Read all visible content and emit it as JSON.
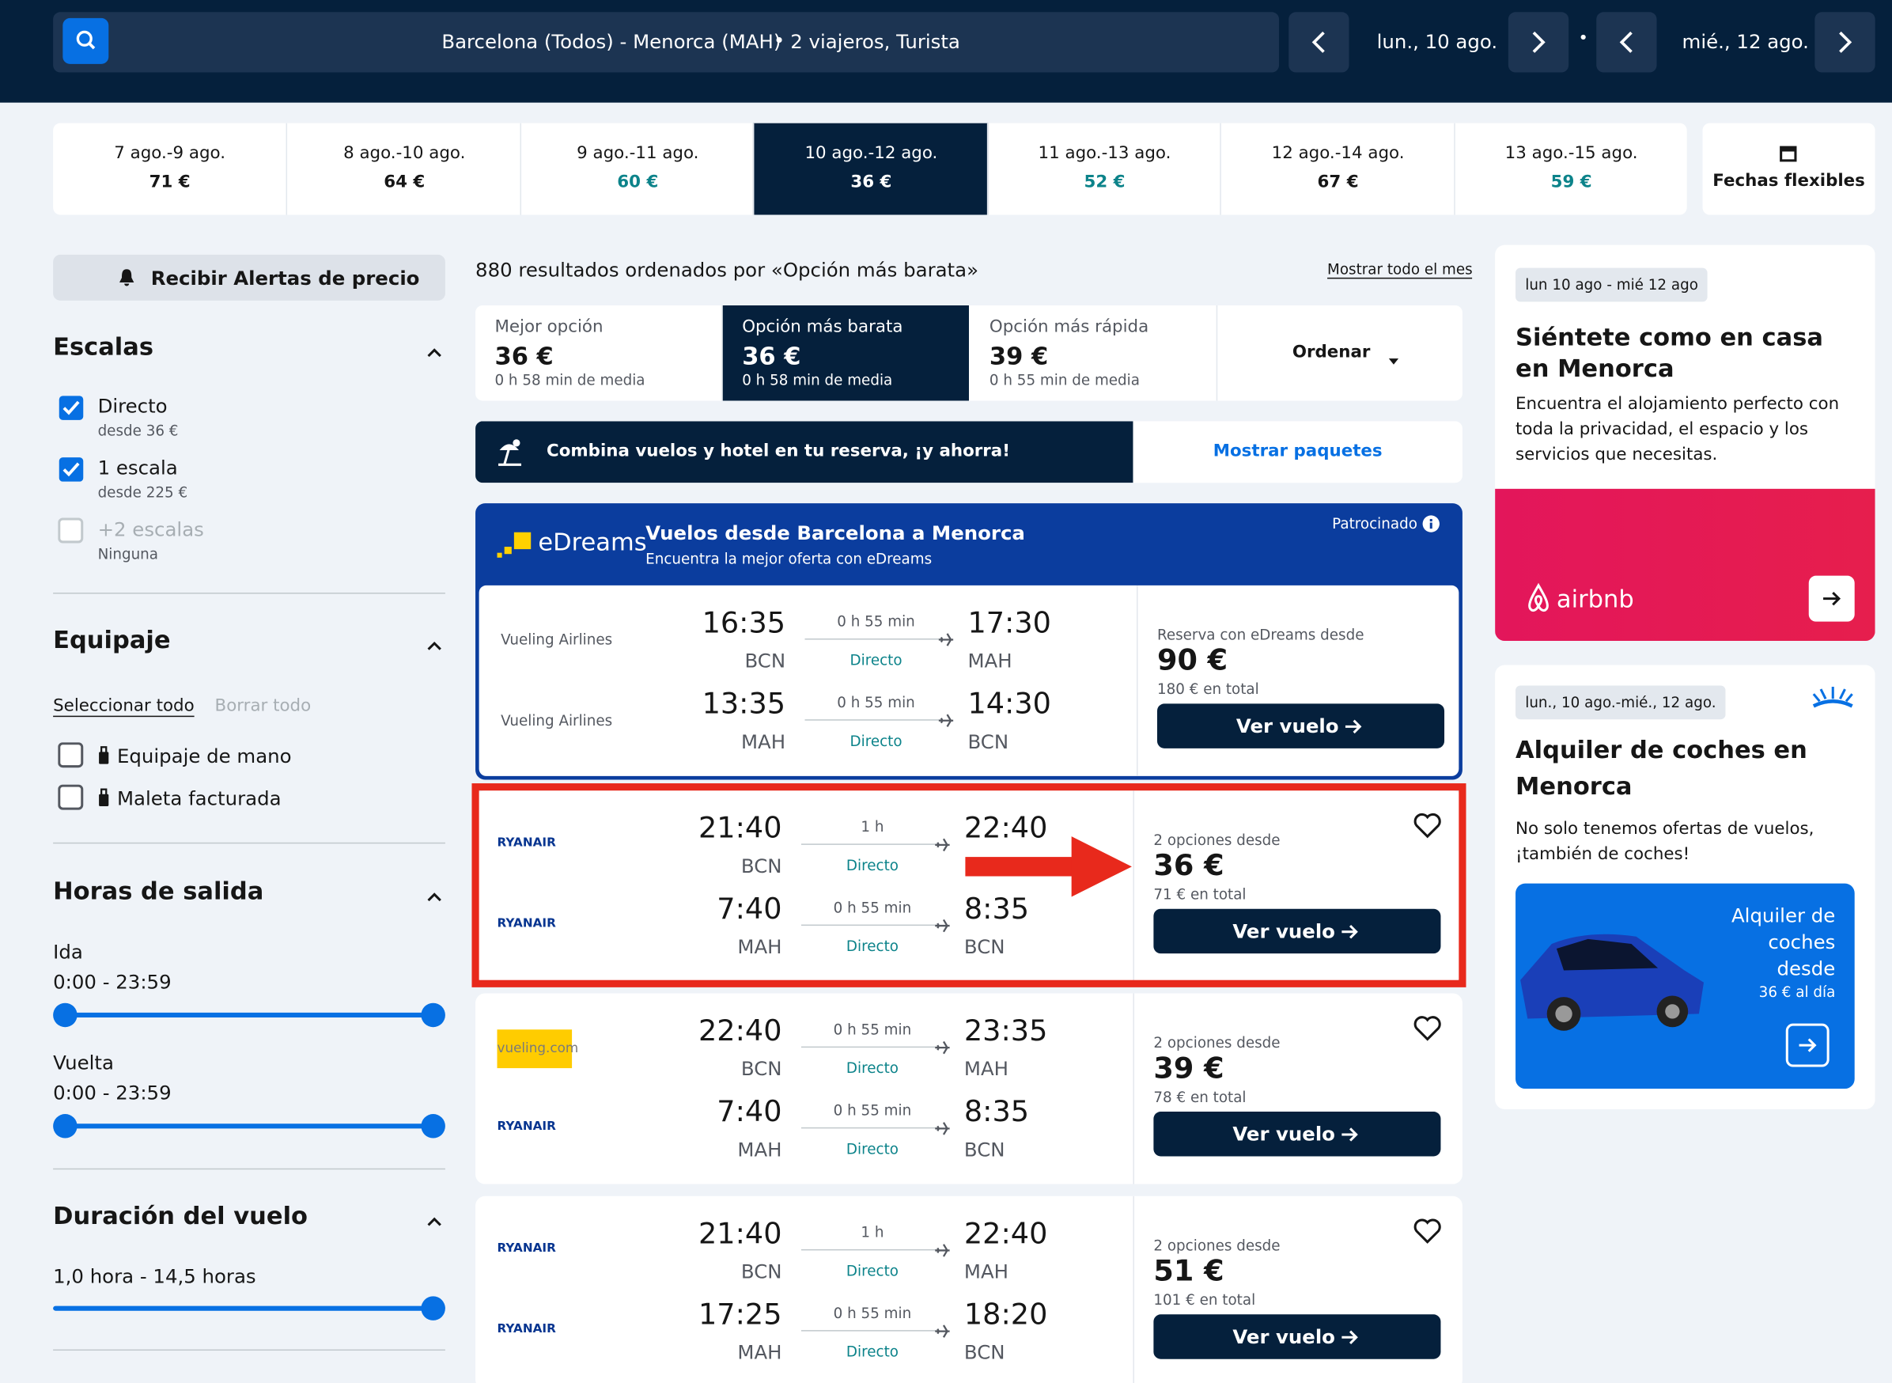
{
  "search": {
    "route": "Barcelona (Todos) - Menorca (MAH)",
    "travelers": "2 viajeros, Turista",
    "depart": "lun., 10 ago.",
    "return": "mié., 12 ago."
  },
  "date_tabs": [
    {
      "dates": "7 ago.-9 ago.",
      "price": "71 €"
    },
    {
      "dates": "8 ago.-10 ago.",
      "price": "64 €"
    },
    {
      "dates": "9 ago.-11 ago.",
      "price": "60 €"
    },
    {
      "dates": "10 ago.-12 ago.",
      "price": "36 €"
    },
    {
      "dates": "11 ago.-13 ago.",
      "price": "52 €"
    },
    {
      "dates": "12 ago.-14 ago.",
      "price": "67 €"
    },
    {
      "dates": "13 ago.-15 ago.",
      "price": "59 €"
    }
  ],
  "flexible_dates": "Fechas flexibles",
  "sidebar": {
    "alert": "Recibir Alertas de precio",
    "stops": {
      "title": "Escalas",
      "options": [
        {
          "label": "Directo",
          "sub": "desde 36 €"
        },
        {
          "label": "1 escala",
          "sub": "desde 225 €"
        },
        {
          "label": "+2 escalas",
          "sub": "Ninguna"
        }
      ]
    },
    "baggage": {
      "title": "Equipaje",
      "select_all": "Seleccionar todo",
      "clear_all": "Borrar todo",
      "options": [
        "Equipaje de mano",
        "Maleta facturada"
      ]
    },
    "departure_times": {
      "title": "Horas de salida",
      "outbound_label": "Ida",
      "outbound_range": "0:00 - 23:59",
      "return_label": "Vuelta",
      "return_range": "0:00 - 23:59"
    },
    "duration": {
      "title": "Duración del vuelo",
      "range": "1,0 hora - 14,5 horas"
    }
  },
  "results": {
    "summary": "880 resultados ordenados por «Opción más barata»",
    "show_month": "Mostrar todo el mes",
    "sort_tabs": [
      {
        "label": "Mejor opción",
        "price": "36 €",
        "duration": "0 h 58 min de media"
      },
      {
        "label": "Opción más barata",
        "price": "36 €",
        "duration": "0 h 58 min de media"
      },
      {
        "label": "Opción más rápida",
        "price": "39 €",
        "duration": "0 h 55 min de media"
      }
    ],
    "sort_button": "Ordenar",
    "package_banner": {
      "text": "Combina vuelos y hotel en tu reserva, ¡y ahorra!",
      "button": "Mostrar paquetes"
    },
    "sponsored": {
      "brand": "eDreams",
      "title": "Vuelos desde Barcelona a Menorca",
      "subtitle": "Encuentra la mejor oferta con eDreams",
      "tag": "Patrocinado",
      "legs": [
        {
          "airline": "Vueling Airlines",
          "dep": "16:35",
          "dep_code": "BCN",
          "duration": "0 h 55 min",
          "stops": "Directo",
          "arr": "17:30",
          "arr_code": "MAH"
        },
        {
          "airline": "Vueling Airlines",
          "dep": "13:35",
          "dep_code": "MAH",
          "duration": "0 h 55 min",
          "stops": "Directo",
          "arr": "14:30",
          "arr_code": "BCN"
        }
      ],
      "price_label": "Reserva con eDreams desde",
      "price": "90 €",
      "total": "180 € en total",
      "button": "Ver vuelo"
    },
    "flights": [
      {
        "legs": [
          {
            "airline": "RYANAIR",
            "dep": "21:40",
            "dep_code": "BCN",
            "duration": "1 h",
            "stops": "Directo",
            "arr": "22:40",
            "arr_code": "MAH"
          },
          {
            "airline": "RYANAIR",
            "dep": "7:40",
            "dep_code": "MAH",
            "duration": "0 h 55 min",
            "stops": "Directo",
            "arr": "8:35",
            "arr_code": "BCN"
          }
        ],
        "price_label": "2 opciones desde",
        "price": "36 €",
        "total": "71 € en total",
        "button": "Ver vuelo"
      },
      {
        "legs": [
          {
            "airline": "vueling.com",
            "dep": "22:40",
            "dep_code": "BCN",
            "duration": "0 h 55 min",
            "stops": "Directo",
            "arr": "23:35",
            "arr_code": "MAH"
          },
          {
            "airline": "RYANAIR",
            "dep": "7:40",
            "dep_code": "MAH",
            "duration": "0 h 55 min",
            "stops": "Directo",
            "arr": "8:35",
            "arr_code": "BCN"
          }
        ],
        "price_label": "2 opciones desde",
        "price": "39 €",
        "total": "78 € en total",
        "button": "Ver vuelo"
      },
      {
        "legs": [
          {
            "airline": "RYANAIR",
            "dep": "21:40",
            "dep_code": "BCN",
            "duration": "1 h",
            "stops": "Directo",
            "arr": "22:40",
            "arr_code": "MAH"
          },
          {
            "airline": "RYANAIR",
            "dep": "17:25",
            "dep_code": "MAH",
            "duration": "0 h 55 min",
            "stops": "Directo",
            "arr": "18:20",
            "arr_code": "BCN"
          }
        ],
        "price_label": "2 opciones desde",
        "price": "51 €",
        "total": "101 € en total",
        "button": "Ver vuelo"
      }
    ]
  },
  "ads": {
    "hotel": {
      "tag": "lun 10 ago - mié 12 ago",
      "title": "Siéntete como en casa en Menorca",
      "text": "Encuentra el alojamiento perfecto con toda la privacidad, el espacio y los servicios que necesitas.",
      "brand": "airbnb"
    },
    "cars": {
      "tag": "lun., 10 ago.-mié., 12 ago.",
      "title": "Alquiler de coches en Menorca",
      "text": "No solo tenemos ofertas de vuelos, ¡también de coches!",
      "card_title": "Alquiler de coches desde",
      "card_price": "36 € al día"
    }
  }
}
